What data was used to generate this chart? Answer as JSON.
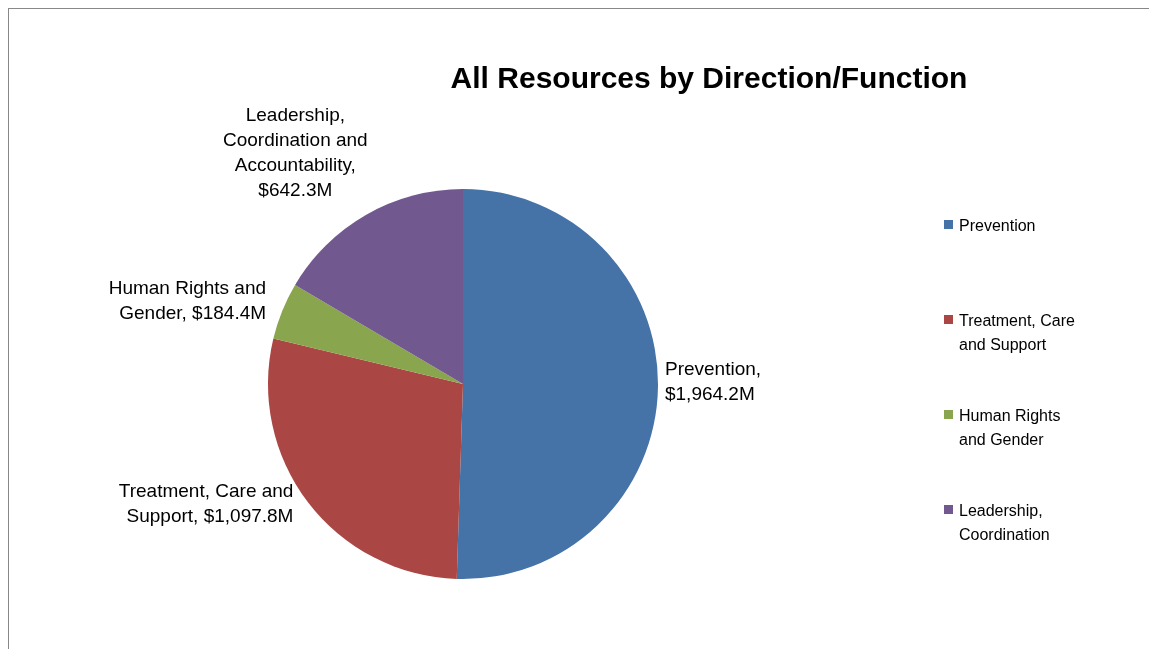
{
  "chart_data": {
    "type": "pie",
    "title": "All Resources by Direction/Function",
    "categories": [
      "Prevention",
      "Treatment, Care and Support",
      "Human Rights and Gender",
      "Leadership, Coordination"
    ],
    "values": [
      1964.2,
      1097.8,
      184.4,
      642.3
    ],
    "colors": [
      "#4572a7",
      "#aa4643",
      "#89a54e",
      "#71588f"
    ],
    "value_labels": [
      "Prevention, $1,964.2M",
      "Treatment, Care and Support, $1,097.8M",
      "Human Rights and Gender, $184.4M",
      "Leadership, Coordination and Accountability, $642.3M"
    ],
    "legend": "right"
  }
}
